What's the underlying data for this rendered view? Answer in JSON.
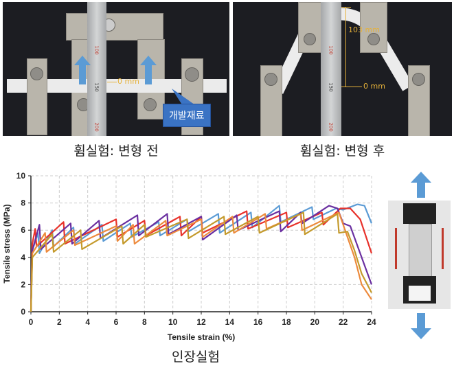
{
  "photos": {
    "left": {
      "caption": "휨실험: 변형 전",
      "zero_label": "0 mm",
      "material_label": "개발재료",
      "ruler_marks": [
        "100",
        "150",
        "200"
      ]
    },
    "right": {
      "caption": "휨실험: 변형 후",
      "height_label": "103 mm",
      "zero_label": "0 mm",
      "ruler_marks": [
        "100",
        "150",
        "200"
      ]
    }
  },
  "tensile_caption": "인장실험",
  "colors": {
    "arrow": "#5b9bd5",
    "callout": "#3a73c4",
    "annotation": "#e6b23a"
  },
  "chart_data": {
    "type": "line",
    "xlabel": "Tensile strain (%)",
    "ylabel": "Tensile stress (MPa)",
    "xlim": [
      0,
      24
    ],
    "ylim": [
      0,
      10
    ],
    "xticks": [
      "0",
      "2",
      "4",
      "6",
      "8",
      "10",
      "12",
      "14",
      "16",
      "18",
      "20",
      "22",
      "24"
    ],
    "yticks": [
      "0",
      "2",
      "4",
      "6",
      "8",
      "10"
    ],
    "grid": true,
    "series": [
      {
        "color": "#5b9bd5",
        "points": [
          [
            0,
            0
          ],
          [
            0.1,
            4.5
          ],
          [
            0.5,
            5.8
          ],
          [
            0.6,
            4.3
          ],
          [
            1.5,
            6
          ],
          [
            1.6,
            4.8
          ],
          [
            3,
            6.2
          ],
          [
            3.1,
            5
          ],
          [
            5,
            6.4
          ],
          [
            5.1,
            5.2
          ],
          [
            7,
            6.5
          ],
          [
            7.1,
            5.5
          ],
          [
            9,
            6.6
          ],
          [
            9.1,
            5.6
          ],
          [
            11,
            6.8
          ],
          [
            11.1,
            5.9
          ],
          [
            13.2,
            7.2
          ],
          [
            13.3,
            5.8
          ],
          [
            15.5,
            7.3
          ],
          [
            15.6,
            6.2
          ],
          [
            17.5,
            7.8
          ],
          [
            17.6,
            6.6
          ],
          [
            19.8,
            7.7
          ],
          [
            19.9,
            6.8
          ],
          [
            21.5,
            7.6
          ],
          [
            22,
            7.5
          ],
          [
            23,
            7.9
          ],
          [
            23.5,
            7.8
          ],
          [
            24,
            6.5
          ]
        ]
      },
      {
        "color": "#e8322b",
        "points": [
          [
            0,
            0
          ],
          [
            0.1,
            5
          ],
          [
            0.3,
            6.1
          ],
          [
            0.4,
            4.8
          ],
          [
            2.3,
            6.6
          ],
          [
            2.4,
            5
          ],
          [
            6,
            6.8
          ],
          [
            6.1,
            5.5
          ],
          [
            8,
            6.7
          ],
          [
            8.1,
            5.6
          ],
          [
            10.5,
            7
          ],
          [
            10.6,
            5.6
          ],
          [
            12,
            7
          ],
          [
            12.1,
            5.8
          ],
          [
            15.2,
            7.4
          ],
          [
            15.3,
            6.1
          ],
          [
            18,
            7.3
          ],
          [
            18.1,
            6.2
          ],
          [
            20.5,
            7.3
          ],
          [
            20.6,
            6.4
          ],
          [
            21.8,
            7.6
          ],
          [
            22.5,
            7.6
          ],
          [
            23.2,
            6.8
          ],
          [
            24,
            4.3
          ]
        ]
      },
      {
        "color": "#6a2fa0",
        "points": [
          [
            0,
            0
          ],
          [
            0.1,
            4.5
          ],
          [
            0.6,
            6.4
          ],
          [
            0.7,
            4.6
          ],
          [
            2.8,
            6.5
          ],
          [
            2.9,
            5
          ],
          [
            4.8,
            6.7
          ],
          [
            4.9,
            5.4
          ],
          [
            7.5,
            7.1
          ],
          [
            7.6,
            5.6
          ],
          [
            9.6,
            7.2
          ],
          [
            9.7,
            5.7
          ],
          [
            12,
            7
          ],
          [
            12.1,
            5.3
          ],
          [
            14.5,
            7.1
          ],
          [
            14.6,
            6
          ],
          [
            17.5,
            7.4
          ],
          [
            17.6,
            5.9
          ],
          [
            19,
            7.3
          ],
          [
            19.1,
            6.5
          ],
          [
            21,
            7.8
          ],
          [
            21.6,
            7.6
          ],
          [
            22,
            6.5
          ],
          [
            22.5,
            6.3
          ],
          [
            23.3,
            4
          ],
          [
            24,
            2
          ]
        ]
      },
      {
        "color": "#ed8a3c",
        "points": [
          [
            0,
            0
          ],
          [
            0.1,
            4.3
          ],
          [
            1,
            5.8
          ],
          [
            1.1,
            4.4
          ],
          [
            3,
            6
          ],
          [
            3.1,
            4.9
          ],
          [
            6,
            6.3
          ],
          [
            6.1,
            5.2
          ],
          [
            7.2,
            6.4
          ],
          [
            7.3,
            5
          ],
          [
            9.5,
            6.7
          ],
          [
            9.6,
            5.6
          ],
          [
            12,
            6.8
          ],
          [
            12.1,
            5.5
          ],
          [
            14.2,
            7
          ],
          [
            14.3,
            5.8
          ],
          [
            16.5,
            7.2
          ],
          [
            16.6,
            6.1
          ],
          [
            19,
            7.2
          ],
          [
            19.1,
            6
          ],
          [
            21.7,
            7.3
          ],
          [
            22,
            6.4
          ],
          [
            22.8,
            4
          ],
          [
            23.3,
            2
          ],
          [
            24,
            0.9
          ]
        ]
      },
      {
        "color": "#c49a2c",
        "points": [
          [
            0,
            0
          ],
          [
            0.1,
            4
          ],
          [
            1.5,
            5.7
          ],
          [
            1.6,
            4.4
          ],
          [
            3.5,
            6
          ],
          [
            3.6,
            4.6
          ],
          [
            6.4,
            6.3
          ],
          [
            6.5,
            5
          ],
          [
            8,
            6.4
          ],
          [
            8.1,
            5.5
          ],
          [
            11,
            6.8
          ],
          [
            11.1,
            5.4
          ],
          [
            13.6,
            7
          ],
          [
            13.7,
            5.7
          ],
          [
            16,
            7
          ],
          [
            16.1,
            5.8
          ],
          [
            19.2,
            7.3
          ],
          [
            19.3,
            5.7
          ],
          [
            21.6,
            7.2
          ],
          [
            21.7,
            5.8
          ],
          [
            22.3,
            5.9
          ],
          [
            22.8,
            4.5
          ],
          [
            23.3,
            2.8
          ],
          [
            24,
            1.4
          ]
        ]
      }
    ]
  }
}
